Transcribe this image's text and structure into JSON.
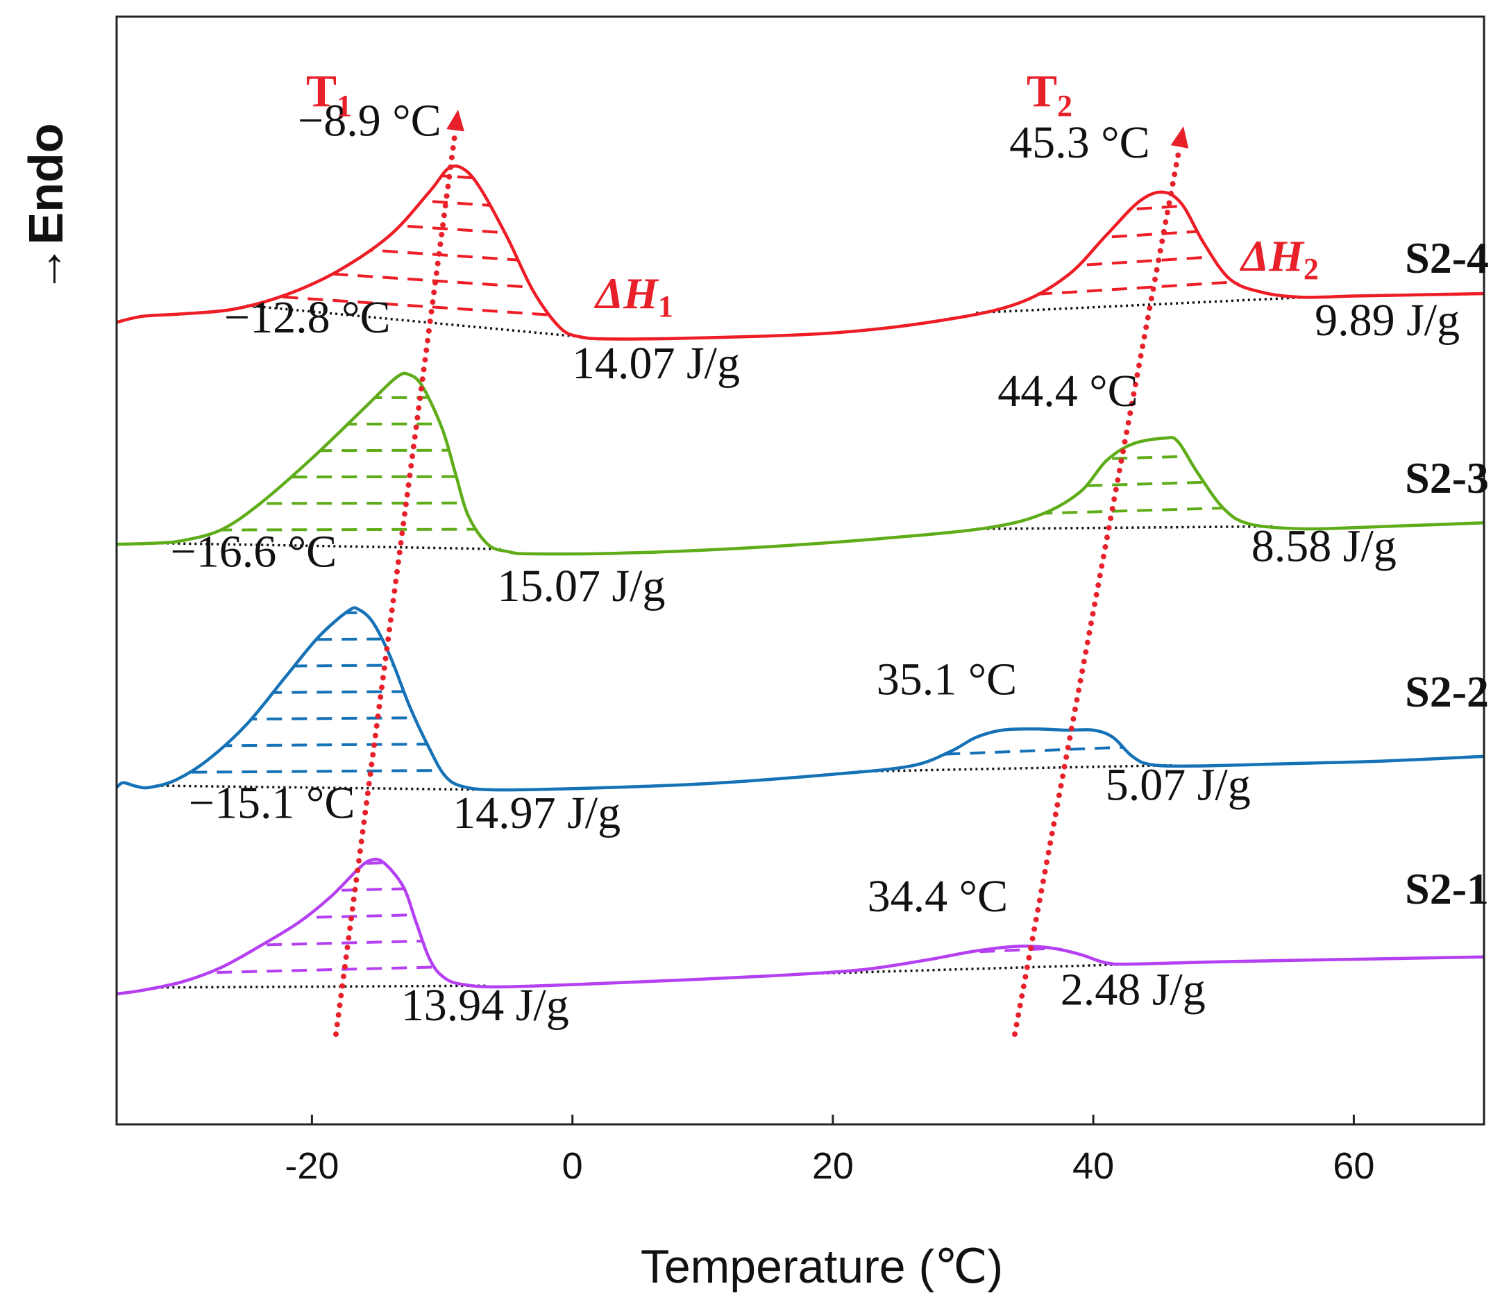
{
  "chart_data": {
    "type": "line",
    "title": "",
    "xlabel": "Temperature (℃)",
    "ylabel": "→Endo",
    "xlim": [
      -35,
      70
    ],
    "x_ticks": [
      -20,
      0,
      20,
      40,
      60
    ],
    "x_tick_labels": [
      "-20",
      "0",
      "20",
      "40",
      "60"
    ],
    "y_ticks_shown": false,
    "series": [
      {
        "name": "S2-4",
        "color": "#ee1c25",
        "curve": [
          [
            -35.0,
            19.0
          ],
          [
            -33.0,
            24.0
          ],
          [
            -30.0,
            26.0
          ],
          [
            -26.0,
            30.0
          ],
          [
            -22.0,
            42.0
          ],
          [
            -18.0,
            62.0
          ],
          [
            -14.0,
            92.0
          ],
          [
            -11.0,
            128.0
          ],
          [
            -9.5,
            148.0
          ],
          [
            -8.3,
            147.0
          ],
          [
            -7.0,
            130.0
          ],
          [
            -5.0,
            90.0
          ],
          [
            -3.0,
            45.0
          ],
          [
            -1.0,
            15.0
          ],
          [
            0.5,
            7.0
          ],
          [
            3.0,
            5.0
          ],
          [
            10.0,
            6.0
          ],
          [
            20.0,
            10.0
          ],
          [
            28.0,
            20.0
          ],
          [
            34.0,
            34.0
          ],
          [
            38.0,
            58.0
          ],
          [
            41.0,
            92.0
          ],
          [
            43.5,
            120.0
          ],
          [
            45.3,
            128.0
          ],
          [
            46.8,
            118.0
          ],
          [
            48.5,
            85.0
          ],
          [
            50.5,
            55.0
          ],
          [
            53.0,
            44.0
          ],
          [
            56.0,
            40.0
          ],
          [
            60.0,
            41.0
          ],
          [
            65.0,
            42.0
          ],
          [
            70.0,
            43.0
          ]
        ],
        "peak1": {
          "temp": -8.9,
          "label": "−8.9 °C"
        },
        "peak2": {
          "temp": 45.3,
          "label": "45.3 °C"
        },
        "enthalpy1": {
          "value": 14.07,
          "label": "14.07 J/g"
        },
        "enthalpy2": {
          "value": 9.89,
          "label": "9.89 J/g"
        },
        "baseline1": [
          -25.0,
          0.5
        ],
        "baseline2": [
          31.0,
          57.0
        ]
      },
      {
        "name": "S2-3",
        "color": "#5fac19",
        "curve": [
          [
            -35.0,
            8.0
          ],
          [
            -32.0,
            9.0
          ],
          [
            -30.0,
            11.0
          ],
          [
            -27.0,
            20.0
          ],
          [
            -24.0,
            42.0
          ],
          [
            -20.0,
            80.0
          ],
          [
            -16.0,
            122.0
          ],
          [
            -13.5,
            148.0
          ],
          [
            -12.5,
            150.0
          ],
          [
            -11.5,
            140.0
          ],
          [
            -10.0,
            105.0
          ],
          [
            -9.0,
            68.0
          ],
          [
            -8.0,
            32.0
          ],
          [
            -6.5,
            8.0
          ],
          [
            -5.0,
            2.0
          ],
          [
            -3.0,
            0.0
          ],
          [
            5.0,
            1.0
          ],
          [
            15.0,
            6.0
          ],
          [
            25.0,
            14.0
          ],
          [
            32.0,
            22.0
          ],
          [
            36.0,
            33.0
          ],
          [
            39.0,
            52.0
          ],
          [
            41.0,
            78.0
          ],
          [
            43.0,
            92.0
          ],
          [
            45.5,
            97.0
          ],
          [
            46.5,
            94.0
          ],
          [
            48.0,
            68.0
          ],
          [
            50.0,
            38.0
          ],
          [
            52.0,
            25.0
          ],
          [
            56.0,
            21.0
          ],
          [
            60.0,
            22.0
          ],
          [
            65.0,
            24.0
          ],
          [
            70.0,
            26.0
          ]
        ],
        "peak1": {
          "temp": -12.8,
          "label": "−12.8 °C"
        },
        "peak2": {
          "temp": 44.4,
          "label": "44.4 °C"
        },
        "enthalpy1": {
          "value": 15.07,
          "label": "15.07 J/g"
        },
        "enthalpy2": {
          "value": 8.58,
          "label": "8.58 J/g"
        },
        "baseline1": [
          -32.0,
          -5.5
        ],
        "baseline2": [
          31.0,
          54.0
        ]
      },
      {
        "name": "S2-2",
        "color": "#1572b6",
        "curve": [
          [
            -35.0,
            2.0
          ],
          [
            -34.5,
            6.0
          ],
          [
            -33.5,
            3.0
          ],
          [
            -32.5,
            2.0
          ],
          [
            -30.5,
            8.0
          ],
          [
            -28.0,
            25.0
          ],
          [
            -25.0,
            55.0
          ],
          [
            -22.0,
            95.0
          ],
          [
            -19.5,
            128.0
          ],
          [
            -17.2,
            150.0
          ],
          [
            -16.4,
            151.0
          ],
          [
            -15.3,
            140.0
          ],
          [
            -14.0,
            112.0
          ],
          [
            -12.5,
            70.0
          ],
          [
            -11.0,
            35.0
          ],
          [
            -9.8,
            12.0
          ],
          [
            -8.5,
            3.0
          ],
          [
            -6.0,
            0.0
          ],
          [
            0.0,
            1.0
          ],
          [
            10.0,
            5.0
          ],
          [
            20.0,
            13.0
          ],
          [
            26.0,
            20.0
          ],
          [
            29.0,
            32.0
          ],
          [
            31.0,
            44.0
          ],
          [
            33.0,
            50.0
          ],
          [
            35.5,
            51.0
          ],
          [
            38.0,
            50.0
          ],
          [
            40.0,
            50.0
          ],
          [
            41.5,
            44.0
          ],
          [
            43.0,
            28.0
          ],
          [
            44.5,
            21.0
          ],
          [
            48.0,
            20.0
          ],
          [
            55.0,
            22.0
          ],
          [
            62.0,
            24.0
          ],
          [
            70.0,
            28.0
          ]
        ],
        "peak1": {
          "temp": -16.6,
          "label": "−16.6 °C"
        },
        "peak2": {
          "temp": 35.1,
          "label": "35.1 °C"
        },
        "enthalpy1": {
          "value": 14.97,
          "label": "14.97 J/g"
        },
        "enthalpy2": {
          "value": 5.07,
          "label": "5.07 J/g"
        },
        "baseline1": [
          -32.0,
          -6.0
        ],
        "baseline2": [
          22.0,
          46.0
        ]
      },
      {
        "name": "S2-1",
        "color": "#b440f2",
        "curve": [
          [
            -35.0,
            0.0
          ],
          [
            -33.0,
            3.0
          ],
          [
            -30.0,
            10.0
          ],
          [
            -27.0,
            22.0
          ],
          [
            -24.0,
            40.0
          ],
          [
            -21.0,
            60.0
          ],
          [
            -18.5,
            82.0
          ],
          [
            -16.5,
            104.0
          ],
          [
            -15.5,
            112.0
          ],
          [
            -14.5,
            110.0
          ],
          [
            -13.0,
            90.0
          ],
          [
            -12.0,
            60.0
          ],
          [
            -11.0,
            30.0
          ],
          [
            -10.0,
            15.0
          ],
          [
            -8.5,
            8.0
          ],
          [
            -5.0,
            6.0
          ],
          [
            5.0,
            10.0
          ],
          [
            15.0,
            15.0
          ],
          [
            22.0,
            20.0
          ],
          [
            27.0,
            28.0
          ],
          [
            31.0,
            36.0
          ],
          [
            34.4,
            40.0
          ],
          [
            37.0,
            38.0
          ],
          [
            39.0,
            33.0
          ],
          [
            41.0,
            26.0
          ],
          [
            43.0,
            25.0
          ],
          [
            50.0,
            27.0
          ],
          [
            60.0,
            29.0
          ],
          [
            70.0,
            31.0
          ]
        ],
        "peak1": {
          "temp": -15.1,
          "label": "−15.1 °C"
        },
        "peak2": {
          "temp": 34.4,
          "label": "34.4 °C"
        },
        "enthalpy1": {
          "value": 13.94,
          "label": "13.94 J/g"
        },
        "enthalpy2": {
          "value": 2.48,
          "label": "2.48 J/g"
        },
        "baseline1": [
          -32.0,
          -6.5
        ],
        "baseline2": [
          17.0,
          46.0
        ]
      }
    ],
    "trend_arrows": [
      {
        "name": "T",
        "subscript": "1",
        "color": "#e8202a"
      },
      {
        "name": "T",
        "subscript": "2",
        "color": "#e8202a"
      }
    ],
    "enthalpy_labels": [
      {
        "name": "ΔH",
        "subscript": "1",
        "color": "#e8202a"
      },
      {
        "name": "ΔH",
        "subscript": "2",
        "color": "#e8202a"
      }
    ]
  }
}
